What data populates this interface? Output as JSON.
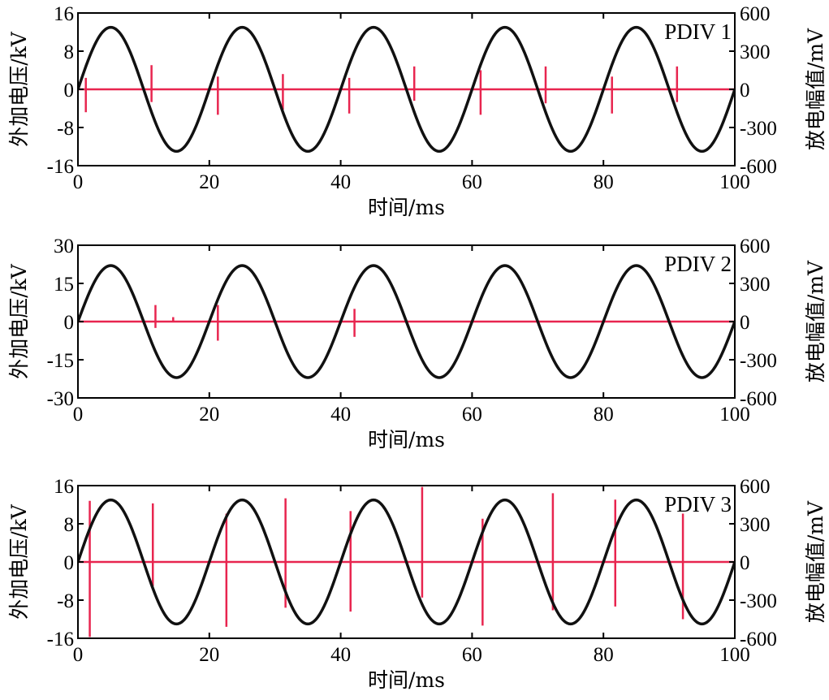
{
  "colors": {
    "voltage": "#111111",
    "discharge": "#e8254f",
    "axis": "#000000",
    "background": "#ffffff"
  },
  "chart_data": [
    {
      "type": "line",
      "annotation": "PDIV 1",
      "xlabel": "时间/ms",
      "ylabel_left": "外加电压/kV",
      "ylabel_right": "放电幅值/mV",
      "xlim": [
        0,
        100
      ],
      "ylim_left": [
        -16,
        16
      ],
      "ylim_right": [
        -600,
        600
      ],
      "x_ticks": [
        "0",
        "20",
        "40",
        "60",
        "80",
        "100"
      ],
      "y_ticks_left": [
        "16",
        "8",
        "0",
        "-8",
        "-16"
      ],
      "y_ticks_right": [
        "600",
        "300",
        "0",
        "-300",
        "-600"
      ],
      "grid": false,
      "series": [
        {
          "axis": "left",
          "kind": "sine",
          "amplitude": 13,
          "period_ms": 20,
          "phase_ms": 0
        },
        {
          "axis": "right",
          "kind": "pulses",
          "pulses": [
            {
              "x": 1.2,
              "top": 90,
              "bottom": -180
            },
            {
              "x": 11.2,
              "top": 190,
              "bottom": -100
            },
            {
              "x": 21.3,
              "top": 100,
              "bottom": -200
            },
            {
              "x": 31.2,
              "top": 120,
              "bottom": -160
            },
            {
              "x": 41.3,
              "top": 90,
              "bottom": -190
            },
            {
              "x": 51.2,
              "top": 180,
              "bottom": -90
            },
            {
              "x": 61.3,
              "top": 150,
              "bottom": -200
            },
            {
              "x": 71.2,
              "top": 180,
              "bottom": -110
            },
            {
              "x": 81.3,
              "top": 100,
              "bottom": -190
            },
            {
              "x": 91.2,
              "top": 180,
              "bottom": -100
            }
          ]
        }
      ]
    },
    {
      "type": "line",
      "annotation": "PDIV 2",
      "xlabel": "时间/ms",
      "ylabel_left": "外加电压/kV",
      "ylabel_right": "放电幅值/mV",
      "xlim": [
        0,
        100
      ],
      "ylim_left": [
        -30,
        30
      ],
      "ylim_right": [
        -600,
        600
      ],
      "x_ticks": [
        "0",
        "20",
        "40",
        "60",
        "80",
        "100"
      ],
      "y_ticks_left": [
        "30",
        "15",
        "0",
        "-15",
        "-30"
      ],
      "y_ticks_right": [
        "600",
        "300",
        "0",
        "-300",
        "-600"
      ],
      "grid": false,
      "series": [
        {
          "axis": "left",
          "kind": "sine",
          "amplitude": 22,
          "period_ms": 20,
          "phase_ms": 0
        },
        {
          "axis": "right",
          "kind": "pulses",
          "pulses": [
            {
              "x": 11.8,
              "top": 130,
              "bottom": -50
            },
            {
              "x": 14.5,
              "top": 35,
              "bottom": 0
            },
            {
              "x": 21.3,
              "top": 130,
              "bottom": -150
            },
            {
              "x": 42.1,
              "top": 100,
              "bottom": -120
            }
          ]
        }
      ]
    },
    {
      "type": "line",
      "annotation": "PDIV 3",
      "xlabel": "时间/ms",
      "ylabel_left": "外加电压/kV",
      "ylabel_right": "放电幅值/mV",
      "xlim": [
        0,
        100
      ],
      "ylim_left": [
        -16,
        16
      ],
      "ylim_right": [
        -600,
        600
      ],
      "x_ticks": [
        "0",
        "20",
        "40",
        "60",
        "80",
        "100"
      ],
      "y_ticks_left": [
        "16",
        "8",
        "0",
        "-8",
        "-16"
      ],
      "y_ticks_right": [
        "600",
        "300",
        "0",
        "-300",
        "-600"
      ],
      "grid": false,
      "series": [
        {
          "axis": "left",
          "kind": "sine",
          "amplitude": 13,
          "period_ms": 20,
          "phase_ms": 0
        },
        {
          "axis": "right",
          "kind": "pulses",
          "pulses": [
            {
              "x": 1.8,
              "top": 480,
              "bottom": -590
            },
            {
              "x": 11.4,
              "top": 460,
              "bottom": -190
            },
            {
              "x": 22.6,
              "top": 380,
              "bottom": -510
            },
            {
              "x": 31.6,
              "top": 500,
              "bottom": -360
            },
            {
              "x": 41.5,
              "top": 400,
              "bottom": -390
            },
            {
              "x": 52.4,
              "top": 590,
              "bottom": -280
            },
            {
              "x": 61.6,
              "top": 340,
              "bottom": -500
            },
            {
              "x": 72.3,
              "top": 540,
              "bottom": -380
            },
            {
              "x": 81.8,
              "top": 490,
              "bottom": -350
            },
            {
              "x": 92.1,
              "top": 380,
              "bottom": -450
            }
          ]
        }
      ]
    }
  ]
}
